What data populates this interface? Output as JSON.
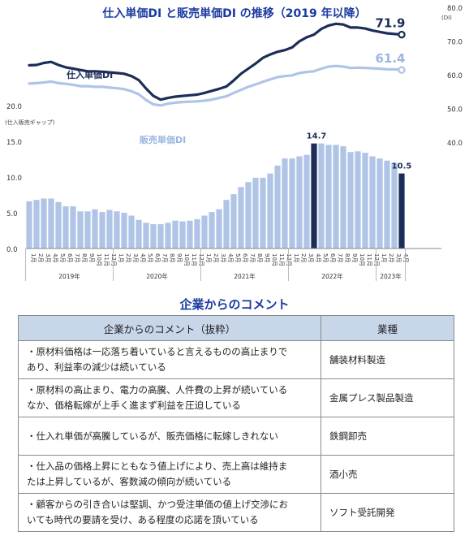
{
  "chart_data": [
    {
      "type": "line",
      "title": "仕入単価DI と販売単価DI の推移（2019 年以降）",
      "right_axis_unit": "(DI)",
      "right_ticks": [
        "80.0",
        "70.0",
        "60.0",
        "50.0",
        "40.0"
      ],
      "ylim": [
        40,
        80
      ],
      "series": [
        {
          "name": "仕入単価DI",
          "color": "#1c2d57",
          "end_label": "71.9",
          "values": [
            62.8,
            62.9,
            63.5,
            63.8,
            62.9,
            62.2,
            61.8,
            61.4,
            61.0,
            61.0,
            60.9,
            60.7,
            60.5,
            60.3,
            59.6,
            58.4,
            55.9,
            53.7,
            52.6,
            53.1,
            53.5,
            53.7,
            53.9,
            54.1,
            54.6,
            55.2,
            55.8,
            56.5,
            58.3,
            60.3,
            61.8,
            63.3,
            65.0,
            66.0,
            66.8,
            67.3,
            68.1,
            69.9,
            71.1,
            71.9,
            73.6,
            74.6,
            75.1,
            74.9,
            74.0,
            74.0,
            73.7,
            73.1,
            72.7,
            72.3,
            72.1,
            71.9
          ]
        },
        {
          "name": "販売単価DI",
          "color": "#afc4e6",
          "end_label": "61.4",
          "values": [
            57.4,
            57.5,
            57.7,
            58.0,
            57.5,
            57.3,
            57.0,
            56.6,
            56.6,
            56.4,
            56.4,
            56.2,
            56.0,
            55.7,
            55.1,
            54.2,
            52.5,
            51.2,
            50.9,
            51.4,
            51.7,
            51.9,
            52.0,
            52.1,
            52.3,
            52.6,
            53.1,
            53.6,
            54.6,
            55.5,
            56.4,
            57.1,
            57.9,
            58.6,
            59.3,
            59.6,
            59.8,
            60.5,
            60.8,
            61.0,
            61.8,
            62.4,
            62.6,
            62.4,
            62.0,
            62.1,
            62.0,
            61.9,
            61.8,
            61.6,
            61.6,
            61.4
          ]
        }
      ]
    },
    {
      "type": "bar",
      "label": "(仕入販売ギャップ)",
      "left_ticks": [
        "20.0",
        "15.0",
        "10.0",
        "5.0",
        "0.0"
      ],
      "ylim": [
        0,
        20
      ],
      "categories": [
        "1月",
        "2月",
        "3月",
        "4月",
        "5月",
        "6月",
        "7月",
        "8月",
        "9月",
        "10月",
        "11月",
        "12月",
        "1月",
        "2月",
        "3月",
        "4月",
        "5月",
        "6月",
        "7月",
        "8月",
        "9月",
        "10月",
        "11月",
        "12月",
        "1月",
        "2月",
        "3月",
        "4月",
        "5月",
        "6月",
        "7月",
        "8月",
        "9月",
        "10月",
        "11月",
        "12月",
        "1月",
        "2月",
        "3月",
        "4月",
        "5月",
        "6月",
        "7月",
        "8月",
        "9月",
        "10月",
        "11月",
        "12月",
        "1月",
        "2月",
        "3月",
        "4月"
      ],
      "years": [
        "2019年",
        "2020年",
        "2021年",
        "2022年",
        "2023年"
      ],
      "values": [
        6.6,
        6.8,
        7.0,
        7.0,
        6.5,
        5.9,
        5.9,
        5.2,
        5.2,
        5.5,
        5.1,
        5.4,
        5.2,
        5.0,
        4.6,
        4.0,
        3.6,
        3.4,
        3.4,
        3.6,
        3.9,
        3.8,
        3.9,
        4.1,
        4.6,
        5.1,
        5.5,
        6.8,
        7.6,
        8.6,
        9.3,
        9.9,
        9.9,
        10.5,
        11.6,
        12.6,
        12.6,
        12.9,
        13.1,
        14.7,
        14.7,
        14.5,
        14.5,
        14.3,
        13.5,
        13.6,
        13.4,
        12.9,
        12.6,
        12.3,
        12.0,
        10.5
      ],
      "highlight": [
        {
          "label": "14.7"
        },
        {
          "label": "10.5"
        }
      ],
      "bar_color": "#afc4e6",
      "highlight_color": "#1c2d57"
    }
  ],
  "comments": {
    "title": "企業からのコメント",
    "header": [
      "企業からのコメント（抜粋）",
      "業種"
    ],
    "rows": [
      {
        "line1": "・原材料価格は一応落ち着いていると言えるものの高止まりで",
        "line2": "あり、利益率の減少は続いている",
        "industry": "舗装材料製造"
      },
      {
        "line1": "・原材料の高止まり、電力の高騰、人件費の上昇が続いている",
        "line2": "なか、価格転嫁が上手く進まず利益を圧迫している",
        "industry": "金属プレス製品製造"
      },
      {
        "line1": "・仕入れ単価が高騰しているが、販売価格に転嫁しきれない",
        "line2": "",
        "industry": "鉄鋼卸売"
      },
      {
        "line1": "・仕入品の価格上昇にともなう値上げにより、売上高は維持ま",
        "line2": "たは上昇しているが、客数減の傾向が続いている",
        "industry": "酒小売"
      },
      {
        "line1": "・顧客からの引き合いは堅調、かつ受注単価の値上げ交渉にお",
        "line2": "いても時代の要請を受け、ある程度の応諾を頂いている",
        "industry": "ソフト受託開発"
      }
    ]
  }
}
